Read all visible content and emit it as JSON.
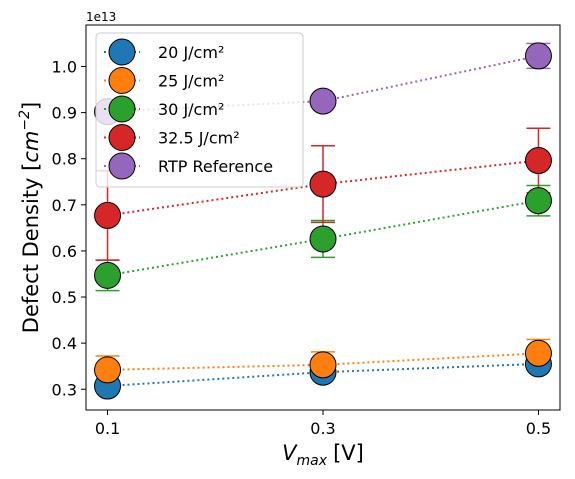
{
  "chart_data": {
    "type": "scatter",
    "xlabel_main": "V",
    "xlabel_sub": "max",
    "xlabel_unit": "[V]",
    "ylabel_main": "Defect Density [",
    "ylabel_unit_base": "cm",
    "ylabel_unit_exp": "−2",
    "ylabel_close": "]",
    "y_offset_label": "1e13",
    "x_ticks": [
      0.1,
      0.3,
      0.5
    ],
    "x_tick_labels": [
      "0.1",
      "0.3",
      "0.5"
    ],
    "y_ticks": [
      0.3,
      0.4,
      0.5,
      0.6,
      0.7,
      0.8,
      0.9,
      1.0
    ],
    "y_tick_labels": [
      "0.3",
      "0.4",
      "0.5",
      "0.6",
      "0.7",
      "0.8",
      "0.9",
      "1.0"
    ],
    "xlim": [
      0.08,
      0.52
    ],
    "ylim": [
      0.255,
      1.09
    ],
    "grid": false,
    "legend_position": "upper-left",
    "series": [
      {
        "name": "20 J/cm²",
        "color": "#1f77b4",
        "x": [
          0.1,
          0.3,
          0.5
        ],
        "y": [
          0.307,
          0.337,
          0.355
        ],
        "err": [
          0.0,
          0.0,
          0.0
        ]
      },
      {
        "name": "25 J/cm²",
        "color": "#ff7f0e",
        "x": [
          0.1,
          0.3,
          0.5
        ],
        "y": [
          0.342,
          0.353,
          0.378
        ],
        "err": [
          0.03,
          0.028,
          0.03
        ]
      },
      {
        "name": "30 J/cm²",
        "color": "#2ca02c",
        "x": [
          0.1,
          0.3,
          0.5
        ],
        "y": [
          0.547,
          0.626,
          0.709
        ],
        "err": [
          0.033,
          0.04,
          0.033
        ]
      },
      {
        "name": "32.5 J/cm²",
        "color": "#d62728",
        "x": [
          0.1,
          0.3,
          0.5
        ],
        "y": [
          0.677,
          0.745,
          0.796
        ],
        "err": [
          0.097,
          0.083,
          0.07
        ]
      },
      {
        "name": "RTP Reference",
        "color": "#9467bd",
        "x": [
          0.1,
          0.3,
          0.5
        ],
        "y": [
          0.902,
          0.925,
          1.023
        ],
        "err": [
          0.0,
          0.0,
          0.027
        ]
      }
    ]
  }
}
